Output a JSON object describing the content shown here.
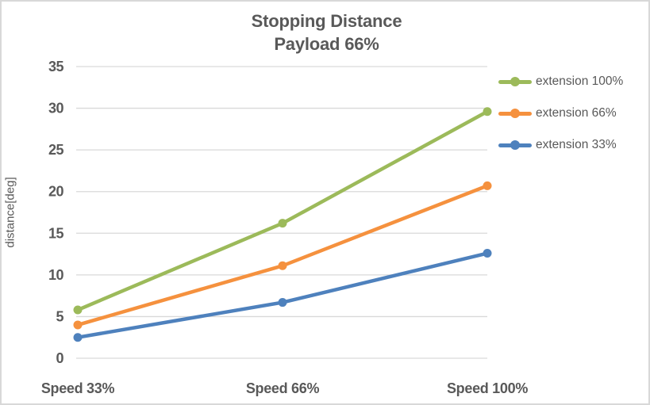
{
  "chart_data": {
    "type": "line",
    "title": "Stopping Distance",
    "subtitle": "Payload 66%",
    "ylabel": "distance[deg]",
    "xlabel": "",
    "categories": [
      "Speed 33%",
      "Speed 66%",
      "Speed 100%"
    ],
    "series": [
      {
        "name": "extension 100%",
        "color": "#9cba5a",
        "values": [
          5.8,
          16.2,
          29.6
        ]
      },
      {
        "name": "extension 66%",
        "color": "#f5913e",
        "values": [
          4.0,
          11.1,
          20.7
        ]
      },
      {
        "name": "extension 33%",
        "color": "#4e81bd",
        "values": [
          2.5,
          6.7,
          12.6
        ]
      }
    ],
    "ylim": [
      0,
      35
    ],
    "yticks": [
      0,
      5,
      10,
      15,
      20,
      25,
      30,
      35
    ],
    "grid": true,
    "legend_position": "right",
    "marker": "circle",
    "colors": {
      "grid": "#d9d9d9",
      "text": "#595959",
      "border": "#d8d8d8",
      "background": "#ffffff"
    }
  }
}
